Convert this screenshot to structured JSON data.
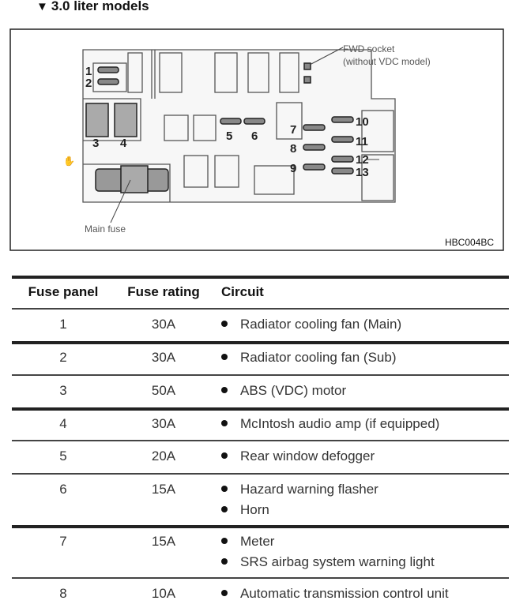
{
  "heading": {
    "icon": "triangle-down-icon",
    "text": "3.0 liter models"
  },
  "diagram": {
    "fuse_numbers": [
      "1",
      "2",
      "3",
      "4",
      "5",
      "6",
      "7",
      "8",
      "9",
      "10",
      "11",
      "12",
      "13"
    ],
    "fwd_socket_label_1": "FWD socket",
    "fwd_socket_label_2": "(without VDC model)",
    "main_fuse_label": "Main fuse",
    "figure_code": "HBC004BC"
  },
  "table": {
    "headers": [
      "Fuse panel",
      "Fuse rating",
      "Circuit"
    ],
    "rows": [
      {
        "panel": "1",
        "rating": "30A",
        "circuits": [
          "Radiator cooling fan (Main)"
        ]
      },
      {
        "panel": "2",
        "rating": "30A",
        "circuits": [
          "Radiator cooling fan (Sub)"
        ]
      },
      {
        "panel": "3",
        "rating": "50A",
        "circuits": [
          "ABS (VDC) motor"
        ]
      },
      {
        "panel": "4",
        "rating": "30A",
        "circuits": [
          "McIntosh audio amp (if equipped)"
        ]
      },
      {
        "panel": "5",
        "rating": "20A",
        "circuits": [
          "Rear window defogger"
        ]
      },
      {
        "panel": "6",
        "rating": "15A",
        "circuits": [
          "Hazard warning flasher",
          "Horn"
        ]
      },
      {
        "panel": "7",
        "rating": "15A",
        "circuits": [
          "Meter",
          "SRS airbag system warning light"
        ]
      },
      {
        "panel": "8",
        "rating": "10A",
        "circuits": [
          "Automatic transmission control unit"
        ]
      }
    ]
  }
}
